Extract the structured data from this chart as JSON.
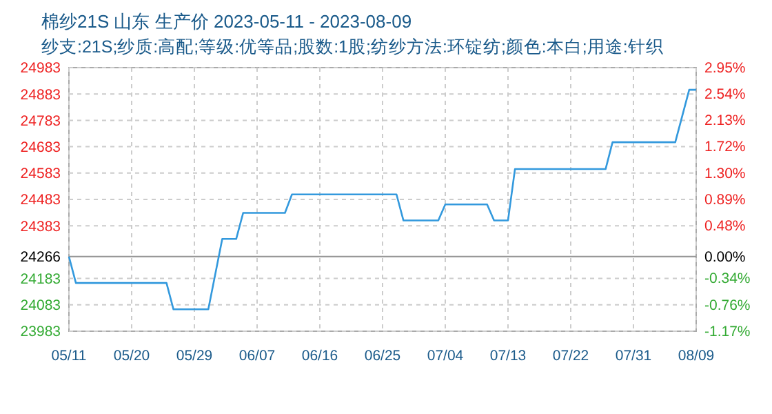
{
  "chart_data": {
    "type": "line",
    "title": "棉纱21S 山东 生产价 2023-05-11 - 2023-08-09",
    "subtitle": "纱支:21S;纱质:高配;等级:优等品;股数:1股;纺纱方法:环锭纺;颜色:本白;用途:针织",
    "x": [
      "2023-05-11",
      "2023-05-12",
      "2023-05-25",
      "2023-05-26",
      "2023-05-31",
      "2023-06-02",
      "2023-06-04",
      "2023-06-05",
      "2023-06-11",
      "2023-06-12",
      "2023-06-27",
      "2023-06-28",
      "2023-07-03",
      "2023-07-04",
      "2023-07-10",
      "2023-07-11",
      "2023-07-13",
      "2023-07-14",
      "2023-07-27",
      "2023-07-28",
      "2023-08-06",
      "2023-08-08",
      "2023-08-09"
    ],
    "series": [
      {
        "color": "#3399dd",
        "values": [
          24266,
          24166,
          24166,
          24066,
          24066,
          24333,
          24333,
          24432,
          24432,
          24502,
          24502,
          24403,
          24403,
          24464,
          24464,
          24403,
          24403,
          24598,
          24598,
          24700,
          24700,
          24899,
          24899
        ]
      }
    ],
    "xlim": [
      "2023-05-11",
      "2023-08-09"
    ],
    "xticks": [
      {
        "value": "2023-05-11",
        "label": "05/11"
      },
      {
        "value": "2023-05-20",
        "label": "05/20"
      },
      {
        "value": "2023-05-29",
        "label": "05/29"
      },
      {
        "value": "2023-06-07",
        "label": "06/07"
      },
      {
        "value": "2023-06-16",
        "label": "06/16"
      },
      {
        "value": "2023-06-25",
        "label": "06/25"
      },
      {
        "value": "2023-07-04",
        "label": "07/04"
      },
      {
        "value": "2023-07-13",
        "label": "07/13"
      },
      {
        "value": "2023-07-22",
        "label": "07/22"
      },
      {
        "value": "2023-07-31",
        "label": "07/31"
      },
      {
        "value": "2023-08-09",
        "label": "08/09"
      }
    ],
    "ylim": [
      23983,
      24983
    ],
    "yticks": [
      23983,
      24083,
      24183,
      24266,
      24383,
      24483,
      24583,
      24683,
      24783,
      24883,
      24983
    ],
    "y2lim": [
      -1.17,
      2.95
    ],
    "y2ticks": [
      {
        "value": -1.17,
        "label": "-1.17%"
      },
      {
        "value": -0.76,
        "label": "-0.76%"
      },
      {
        "value": -0.34,
        "label": "-0.34%"
      },
      {
        "value": 0,
        "label": "0.00%"
      },
      {
        "value": 0.48,
        "label": "0.48%"
      },
      {
        "value": 0.89,
        "label": "0.89%"
      },
      {
        "value": 1.3,
        "label": "1.30%"
      },
      {
        "value": 1.72,
        "label": "1.72%"
      },
      {
        "value": 2.13,
        "label": "2.13%"
      },
      {
        "value": 2.54,
        "label": "2.54%"
      },
      {
        "value": 2.95,
        "label": "2.95%"
      }
    ],
    "ref_lines": [
      {
        "axis": "y",
        "value": 24266,
        "color": "#999999"
      }
    ],
    "grid": true,
    "marker": "none",
    "line_style": "solid"
  }
}
